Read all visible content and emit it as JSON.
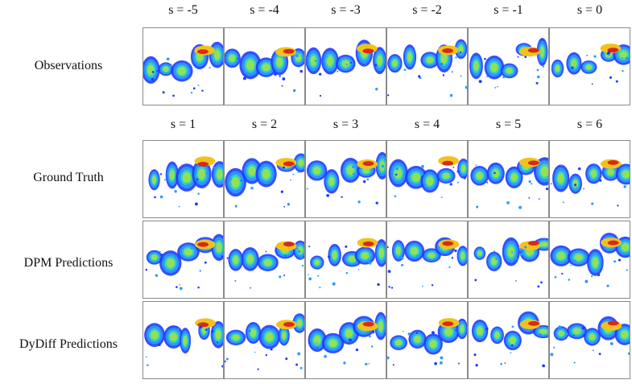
{
  "figure": {
    "top_columns": [
      "s = -5",
      "s = -4",
      "s = -3",
      "s = -2",
      "s = -1",
      "s = 0"
    ],
    "bottom_columns": [
      "s = 1",
      "s = 2",
      "s = 3",
      "s = 4",
      "s = 5",
      "s = 6"
    ],
    "rows": {
      "observations": "Observations",
      "ground_truth": "Ground Truth",
      "dpm": "DPM Predictions",
      "dydiff": "DyDiff Predictions"
    },
    "colors": {
      "low": "#1e3cff",
      "mid_low": "#2a9dff",
      "mid": "#35d4c0",
      "mid_high": "#9be34a",
      "high": "#f2c21b",
      "peak": "#d9281c"
    }
  }
}
